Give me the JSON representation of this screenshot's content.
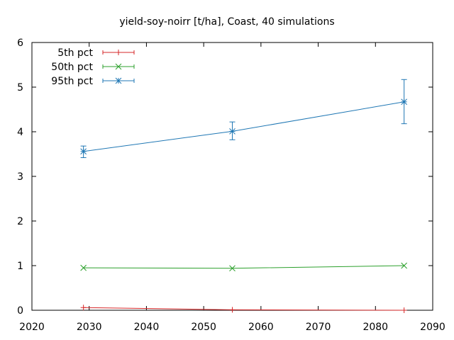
{
  "chart_data": {
    "type": "line",
    "title": "yield-soy-noirr [t/ha], Coast, 40 simulations",
    "xlabel": "",
    "ylabel": "",
    "xlim": [
      2020,
      2090
    ],
    "ylim": [
      0,
      6
    ],
    "xticks": [
      2020,
      2030,
      2040,
      2050,
      2060,
      2070,
      2080,
      2090
    ],
    "yticks": [
      0,
      1,
      2,
      3,
      4,
      5,
      6
    ],
    "grid": false,
    "legend_position": "top-left",
    "series": [
      {
        "name": "5th pct",
        "color": "#d62728",
        "marker": "plus",
        "points": [
          {
            "x": 2029,
            "y": 0.06,
            "err_low": 0.06,
            "err_high": 0.06
          },
          {
            "x": 2055,
            "y": 0.01,
            "err_low": 0.01,
            "err_high": 0.01
          },
          {
            "x": 2085,
            "y": 0.0,
            "err_low": 0.0,
            "err_high": 0.0
          }
        ]
      },
      {
        "name": "50th pct",
        "color": "#2ca02c",
        "marker": "cross",
        "points": [
          {
            "x": 2029,
            "y": 0.95,
            "err_low": 0.95,
            "err_high": 0.95
          },
          {
            "x": 2055,
            "y": 0.94,
            "err_low": 0.94,
            "err_high": 0.94
          },
          {
            "x": 2085,
            "y": 1.0,
            "err_low": 1.0,
            "err_high": 1.0
          }
        ]
      },
      {
        "name": "95th pct",
        "color": "#1f77b4",
        "marker": "star",
        "points": [
          {
            "x": 2029,
            "y": 3.56,
            "err_low": 3.42,
            "err_high": 3.68
          },
          {
            "x": 2055,
            "y": 4.01,
            "err_low": 3.82,
            "err_high": 4.22
          },
          {
            "x": 2085,
            "y": 4.67,
            "err_low": 4.18,
            "err_high": 5.17
          }
        ]
      }
    ]
  }
}
